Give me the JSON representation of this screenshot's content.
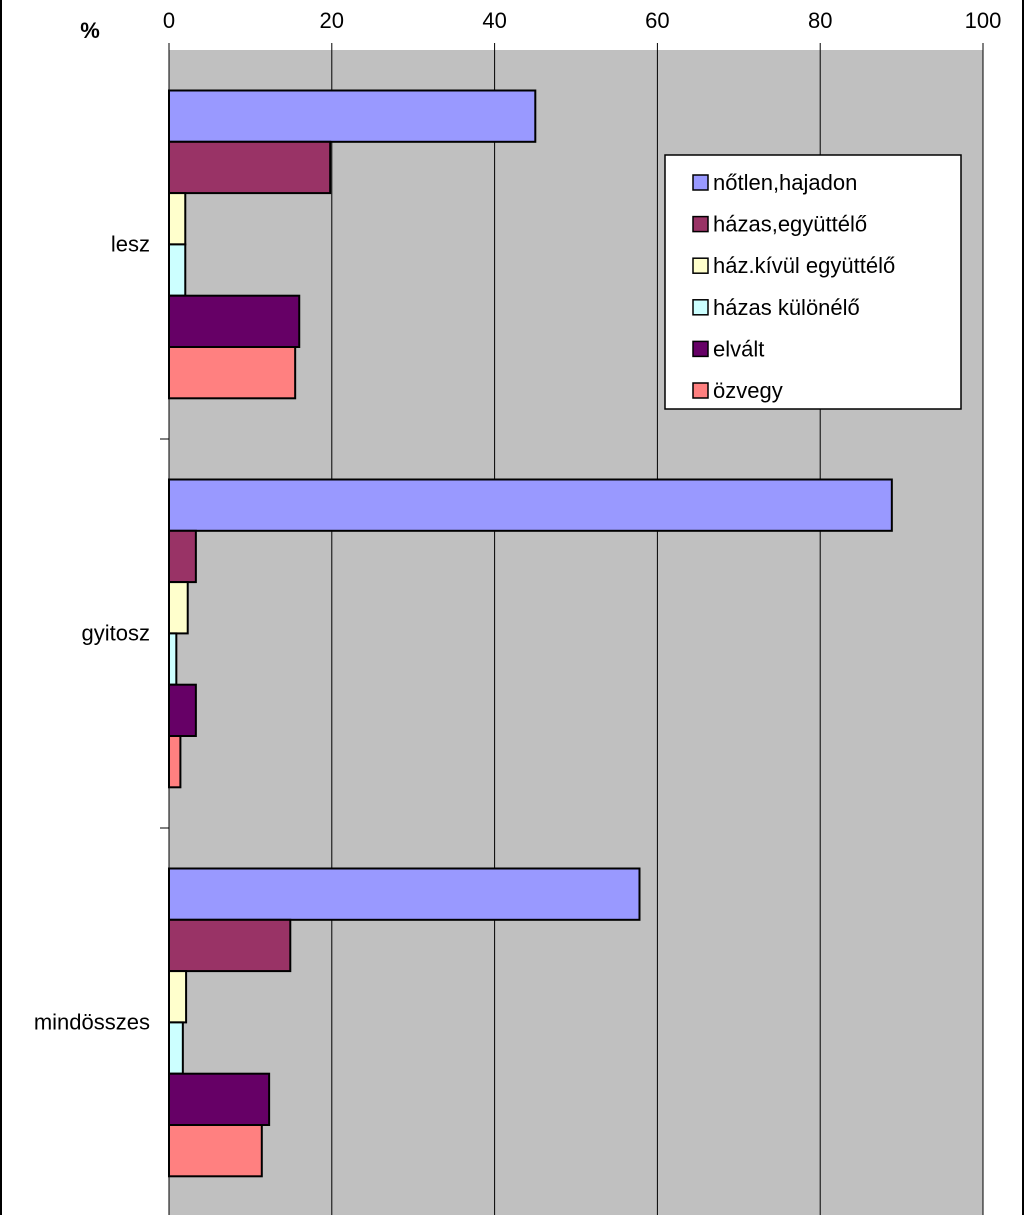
{
  "chart_data": {
    "type": "bar",
    "orientation": "horizontal",
    "unit_label": "%",
    "categories": [
      "lesz",
      "gyitosz",
      "mindösszes"
    ],
    "series": [
      {
        "name": "nőtlen,hajadon",
        "color": "#9999ff",
        "values": [
          45,
          88.8,
          57.8
        ]
      },
      {
        "name": "házas,együttélő",
        "color": "#993366",
        "values": [
          19.8,
          3.3,
          14.9
        ]
      },
      {
        "name": "ház.kívül együttélő",
        "color": "#ffffcc",
        "values": [
          2.0,
          2.3,
          2.1
        ]
      },
      {
        "name": "házas különélő",
        "color": "#ccffff",
        "values": [
          2.0,
          0.9,
          1.7
        ]
      },
      {
        "name": "elvált",
        "color": "#660066",
        "values": [
          16.0,
          3.3,
          12.3
        ]
      },
      {
        "name": "özvegy",
        "color": "#ff8080",
        "values": [
          15.5,
          1.4,
          11.4
        ]
      }
    ],
    "x_ticks": [
      "0",
      "20",
      "40",
      "60",
      "80",
      "100"
    ],
    "xlim": [
      0,
      100
    ],
    "x_axis_position": "top",
    "grid": true,
    "plot_background": "#c0c0c0",
    "legend_position": "top-right"
  }
}
